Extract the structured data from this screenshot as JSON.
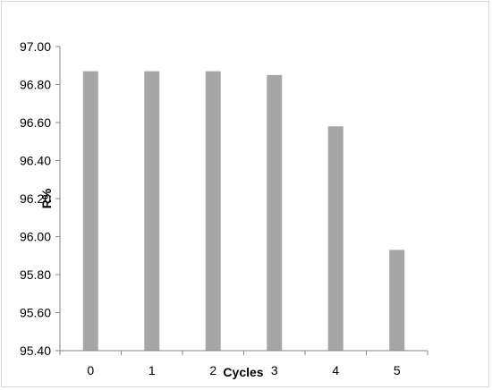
{
  "chart_data": {
    "type": "bar",
    "title": "",
    "xlabel": "Cycles",
    "ylabel": "R%",
    "categories": [
      "0",
      "1",
      "2",
      "3",
      "4",
      "5"
    ],
    "values": [
      96.87,
      96.87,
      96.87,
      96.85,
      96.58,
      95.93
    ],
    "ylim": [
      95.4,
      97.0
    ],
    "yticks": [
      "95.40",
      "95.60",
      "95.80",
      "96.00",
      "96.20",
      "96.40",
      "96.60",
      "96.80",
      "97.00"
    ],
    "grid": false,
    "legend": "none",
    "colors": {
      "bar": "#a6a6a6",
      "axis": "#868686"
    }
  }
}
